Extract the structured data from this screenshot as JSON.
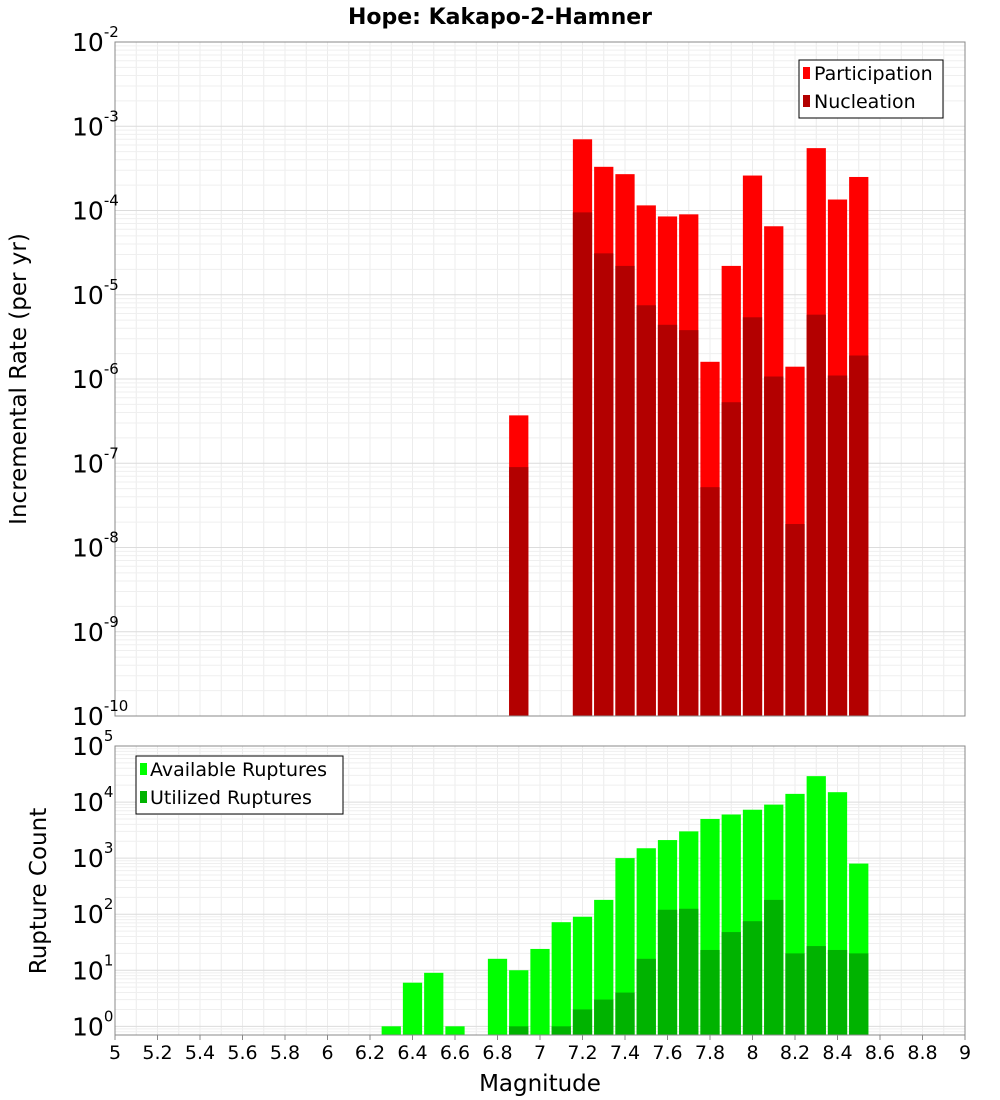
{
  "chart_data": [
    {
      "type": "bar",
      "title": "Hope: Kakapo-2-Hamner",
      "ylabel": "Incremental Rate (per yr)",
      "yscale": "log",
      "ylim": [
        1e-10,
        0.01
      ],
      "xlim": [
        5,
        9
      ],
      "bar_width": 0.1,
      "legend": "top-right",
      "grid": true,
      "categories": [
        6.9,
        7.2,
        7.3,
        7.4,
        7.5,
        7.6,
        7.7,
        7.8,
        7.9,
        8.0,
        8.1,
        8.2,
        8.3,
        8.4,
        8.5
      ],
      "series": [
        {
          "name": "Participation",
          "color": "#ff0000",
          "values": [
            3.7e-07,
            0.0007,
            0.00033,
            0.00027,
            0.000115,
            8.5e-05,
            9e-05,
            1.6e-06,
            2.2e-05,
            0.00026,
            6.5e-05,
            1.4e-06,
            0.00055,
            0.000135,
            0.00025
          ]
        },
        {
          "name": "Nucleation",
          "color": "#b30000",
          "values": [
            9e-08,
            9.5e-05,
            3.1e-05,
            2.2e-05,
            7.5e-06,
            4.4e-06,
            3.8e-06,
            5.2e-08,
            5.3e-07,
            5.4e-06,
            1.07e-06,
            1.9e-08,
            5.8e-06,
            1.1e-06,
            1.9e-06
          ]
        }
      ]
    },
    {
      "type": "bar",
      "ylabel": "Rupture Count",
      "xlabel": "Magnitude",
      "yscale": "log",
      "ylim": [
        0.7,
        100000.0
      ],
      "xlim": [
        5,
        9
      ],
      "bar_width": 0.1,
      "legend": "top-left",
      "grid": true,
      "xticks": [
        "5",
        "5.2",
        "5.4",
        "5.6",
        "5.8",
        "6",
        "6.2",
        "6.4",
        "6.6",
        "6.8",
        "7",
        "7.2",
        "7.4",
        "7.6",
        "7.8",
        "8",
        "8.2",
        "8.4",
        "8.6",
        "8.8",
        "9"
      ],
      "categories": [
        6.3,
        6.4,
        6.5,
        6.6,
        6.8,
        6.9,
        7.0,
        7.1,
        7.2,
        7.3,
        7.4,
        7.5,
        7.6,
        7.7,
        7.8,
        7.9,
        8.0,
        8.1,
        8.2,
        8.3,
        8.4,
        8.5
      ],
      "series": [
        {
          "name": "Available Ruptures",
          "color": "#00ff00",
          "values": [
            1,
            6,
            9,
            1,
            16,
            10,
            24,
            72,
            90,
            180,
            1000,
            1500,
            2100,
            3000,
            5000,
            6000,
            7300,
            9000,
            14000,
            29000,
            15000,
            800
          ]
        },
        {
          "name": "Utilized Ruptures",
          "color": "#00b300",
          "values": [
            0,
            0,
            0,
            0,
            0,
            1,
            0,
            1,
            2,
            3,
            4,
            16,
            120,
            125,
            23,
            48,
            75,
            180,
            20,
            27,
            23,
            20
          ]
        }
      ]
    }
  ]
}
